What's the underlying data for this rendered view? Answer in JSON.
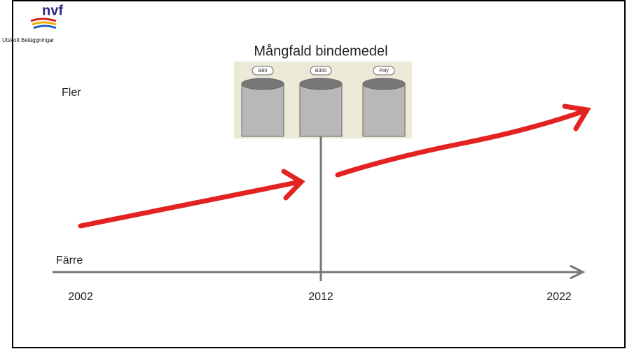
{
  "logo": {
    "text": "nvf",
    "subtitle": "Utskott Beläggningar"
  },
  "title": "Mångfald bindemedel",
  "tanks": [
    "B80",
    "B300",
    "Poly"
  ],
  "labels": {
    "more": "Fler",
    "fewer": "Färre"
  },
  "years": [
    "2002",
    "2012",
    "2022"
  ]
}
